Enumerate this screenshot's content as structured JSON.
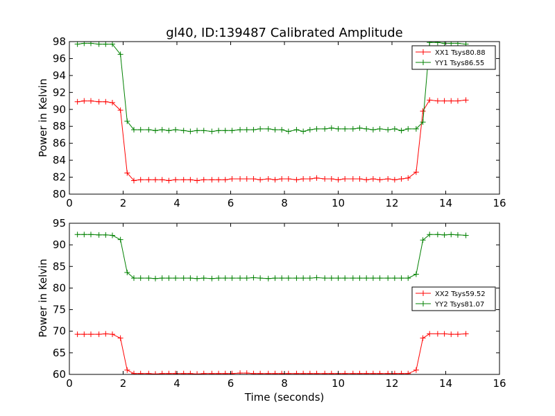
{
  "chart_data": [
    {
      "type": "line",
      "title": "gl40, ID:139487 Calibrated Amplitude",
      "xlabel": "",
      "ylabel": "Power in Kelvin",
      "xlim": [
        0,
        16
      ],
      "ylim": [
        80,
        98
      ],
      "xticks": [
        "0",
        "2",
        "4",
        "6",
        "8",
        "10",
        "12",
        "14",
        "16"
      ],
      "yticks": [
        "80",
        "82",
        "84",
        "86",
        "88",
        "90",
        "92",
        "94",
        "96",
        "98"
      ],
      "grid": false,
      "legend_position": "top-right",
      "x": [
        0.3,
        0.55,
        0.8,
        1.1,
        1.35,
        1.6,
        1.9,
        2.15,
        2.4,
        2.65,
        2.95,
        3.2,
        3.45,
        3.7,
        3.95,
        4.25,
        4.5,
        4.75,
        5.0,
        5.3,
        5.55,
        5.8,
        6.05,
        6.35,
        6.6,
        6.85,
        7.1,
        7.4,
        7.65,
        7.9,
        8.15,
        8.45,
        8.7,
        8.95,
        9.2,
        9.5,
        9.75,
        10.0,
        10.25,
        10.55,
        10.8,
        11.05,
        11.3,
        11.55,
        11.85,
        12.1,
        12.35,
        12.6,
        12.9,
        13.15,
        13.4,
        13.7,
        13.95,
        14.2,
        14.45,
        14.75
      ],
      "series": [
        {
          "name": "XX1 Tsys80.88",
          "color": "#ff0000",
          "values": [
            90.9,
            91.0,
            91.0,
            90.9,
            90.9,
            90.8,
            89.9,
            82.5,
            81.6,
            81.7,
            81.7,
            81.7,
            81.7,
            81.6,
            81.7,
            81.7,
            81.7,
            81.6,
            81.7,
            81.7,
            81.7,
            81.7,
            81.8,
            81.8,
            81.8,
            81.8,
            81.7,
            81.8,
            81.7,
            81.8,
            81.8,
            81.7,
            81.8,
            81.8,
            81.9,
            81.8,
            81.8,
            81.7,
            81.8,
            81.8,
            81.8,
            81.7,
            81.8,
            81.7,
            81.8,
            81.7,
            81.8,
            81.9,
            82.6,
            89.8,
            91.1,
            91.0,
            91.0,
            91.0,
            91.0,
            91.1
          ]
        },
        {
          "name": "YY1 Tsys86.55",
          "color": "#008000",
          "values": [
            97.7,
            97.8,
            97.8,
            97.7,
            97.7,
            97.7,
            96.5,
            88.6,
            87.6,
            87.6,
            87.6,
            87.5,
            87.6,
            87.5,
            87.6,
            87.5,
            87.4,
            87.5,
            87.5,
            87.4,
            87.5,
            87.5,
            87.5,
            87.6,
            87.6,
            87.6,
            87.7,
            87.7,
            87.6,
            87.6,
            87.4,
            87.6,
            87.4,
            87.6,
            87.7,
            87.7,
            87.8,
            87.7,
            87.7,
            87.7,
            87.8,
            87.7,
            87.6,
            87.7,
            87.6,
            87.7,
            87.5,
            87.7,
            87.7,
            88.5,
            97.9,
            97.9,
            97.8,
            97.8,
            97.8,
            97.7
          ]
        }
      ]
    },
    {
      "type": "line",
      "title": "",
      "xlabel": "Time (seconds)",
      "ylabel": "Power in Kelvin",
      "xlim": [
        0,
        16
      ],
      "ylim": [
        60,
        95
      ],
      "xticks": [
        "0",
        "2",
        "4",
        "6",
        "8",
        "10",
        "12",
        "14",
        "16"
      ],
      "yticks": [
        "60",
        "65",
        "70",
        "75",
        "80",
        "85",
        "90",
        "95"
      ],
      "grid": false,
      "legend_position": "center-right",
      "x": [
        0.3,
        0.55,
        0.8,
        1.1,
        1.35,
        1.6,
        1.9,
        2.15,
        2.4,
        2.65,
        2.95,
        3.2,
        3.45,
        3.7,
        3.95,
        4.25,
        4.5,
        4.75,
        5.0,
        5.3,
        5.55,
        5.8,
        6.05,
        6.35,
        6.6,
        6.85,
        7.1,
        7.4,
        7.65,
        7.9,
        8.15,
        8.45,
        8.7,
        8.95,
        9.2,
        9.5,
        9.75,
        10.0,
        10.25,
        10.55,
        10.8,
        11.05,
        11.3,
        11.55,
        11.85,
        12.1,
        12.35,
        12.6,
        12.9,
        13.15,
        13.4,
        13.7,
        13.95,
        14.2,
        14.45,
        14.75
      ],
      "series": [
        {
          "name": "XX2 Tsys59.52",
          "color": "#ff0000",
          "values": [
            69.3,
            69.3,
            69.3,
            69.3,
            69.4,
            69.3,
            68.4,
            61.0,
            60.2,
            60.2,
            60.2,
            60.1,
            60.2,
            60.2,
            60.2,
            60.2,
            60.2,
            60.1,
            60.2,
            60.2,
            60.2,
            60.2,
            60.2,
            60.3,
            60.3,
            60.2,
            60.2,
            60.2,
            60.2,
            60.2,
            60.2,
            60.2,
            60.2,
            60.2,
            60.2,
            60.2,
            60.2,
            60.2,
            60.2,
            60.2,
            60.2,
            60.2,
            60.2,
            60.2,
            60.2,
            60.2,
            60.2,
            60.2,
            61.0,
            68.4,
            69.4,
            69.4,
            69.4,
            69.3,
            69.3,
            69.4
          ]
        },
        {
          "name": "YY2 Tsys81.07",
          "color": "#008000",
          "values": [
            92.4,
            92.4,
            92.4,
            92.3,
            92.3,
            92.2,
            91.2,
            83.6,
            82.3,
            82.3,
            82.3,
            82.2,
            82.3,
            82.3,
            82.3,
            82.3,
            82.3,
            82.2,
            82.3,
            82.2,
            82.3,
            82.3,
            82.3,
            82.3,
            82.3,
            82.4,
            82.3,
            82.2,
            82.3,
            82.3,
            82.3,
            82.3,
            82.3,
            82.3,
            82.4,
            82.3,
            82.3,
            82.3,
            82.3,
            82.3,
            82.3,
            82.3,
            82.3,
            82.3,
            82.3,
            82.3,
            82.3,
            82.3,
            83.2,
            91.1,
            92.4,
            92.4,
            92.3,
            92.4,
            92.3,
            92.2
          ]
        }
      ]
    }
  ]
}
